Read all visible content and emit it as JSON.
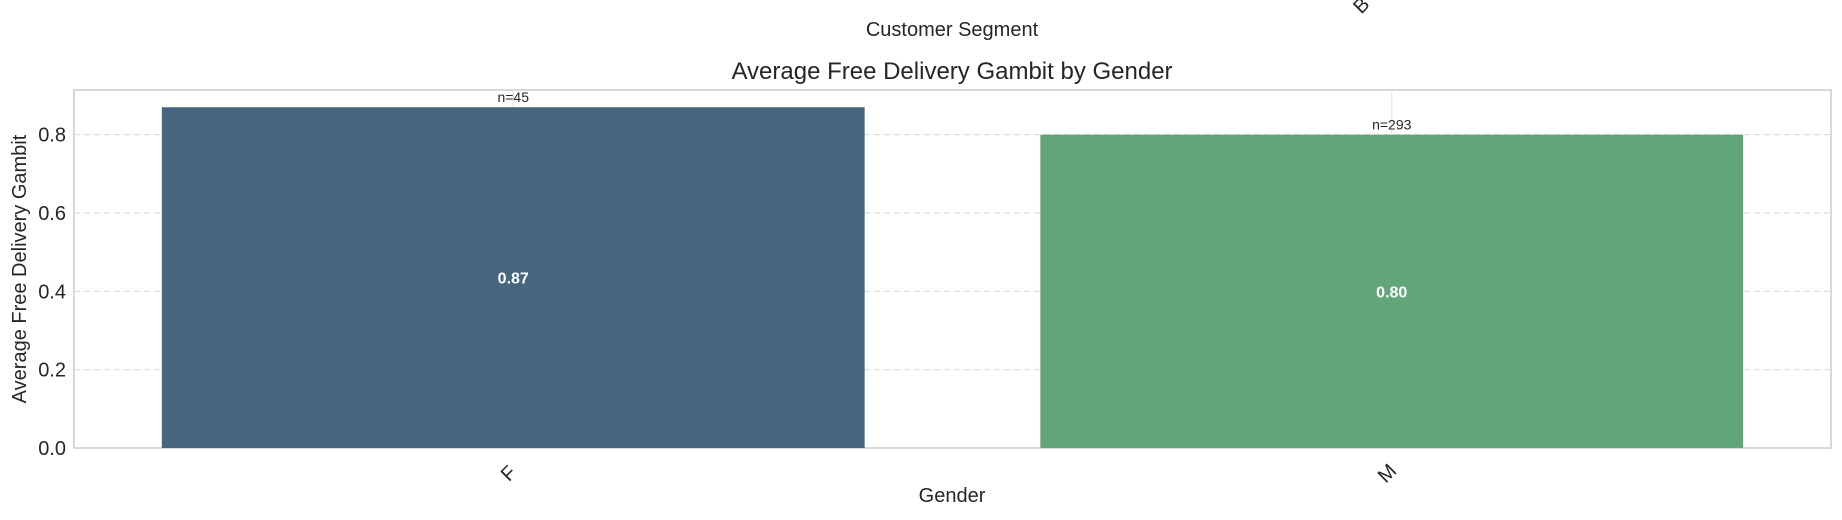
{
  "top_fragment": {
    "xlabel": "Customer Segment",
    "tick_fragment": "B"
  },
  "chart_data": {
    "type": "bar",
    "title": "Average Free Delivery Gambit by Gender",
    "xlabel": "Gender",
    "ylabel": "Average Free Delivery Gambit",
    "categories": [
      "F",
      "M"
    ],
    "values": [
      0.87,
      0.8
    ],
    "value_labels": [
      "0.87",
      "0.80"
    ],
    "count_labels": [
      "n=45",
      "n=293"
    ],
    "colors": [
      "#46667f",
      "#62a57b"
    ],
    "ylim": [
      0,
      0.914
    ],
    "yticks": [
      0.0,
      0.2,
      0.4,
      0.6,
      0.8
    ],
    "ytick_labels": [
      "0.0",
      "0.2",
      "0.4",
      "0.6",
      "0.8"
    ],
    "grid": true
  }
}
